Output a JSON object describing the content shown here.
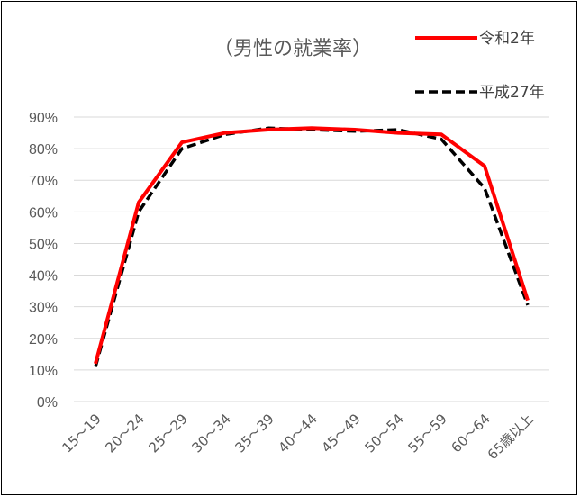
{
  "chart_data": {
    "type": "line",
    "title": "（男性の就業率）",
    "xlabel": "",
    "ylabel": "",
    "categories": [
      "15～19",
      "20～24",
      "25～29",
      "30～34",
      "35～39",
      "40～44",
      "45～49",
      "50～54",
      "55～59",
      "60～64",
      "65歳以上"
    ],
    "y_ticks": [
      "0%",
      "10%",
      "20%",
      "30%",
      "40%",
      "50%",
      "60%",
      "70%",
      "80%",
      "90%"
    ],
    "ylim": [
      0,
      90
    ],
    "grid": "horizontal",
    "legend_position": "top-right",
    "series": [
      {
        "name": "令和2年",
        "color": "#ff0000",
        "style": "solid",
        "values": [
          12,
          63,
          82,
          85,
          86,
          86.5,
          86,
          85,
          84.5,
          74.5,
          32
        ]
      },
      {
        "name": "平成27年",
        "color": "#000000",
        "style": "dashed",
        "values": [
          11,
          60,
          80,
          84.5,
          86.5,
          86,
          85.5,
          86,
          83,
          67.5,
          30.5
        ]
      }
    ]
  }
}
